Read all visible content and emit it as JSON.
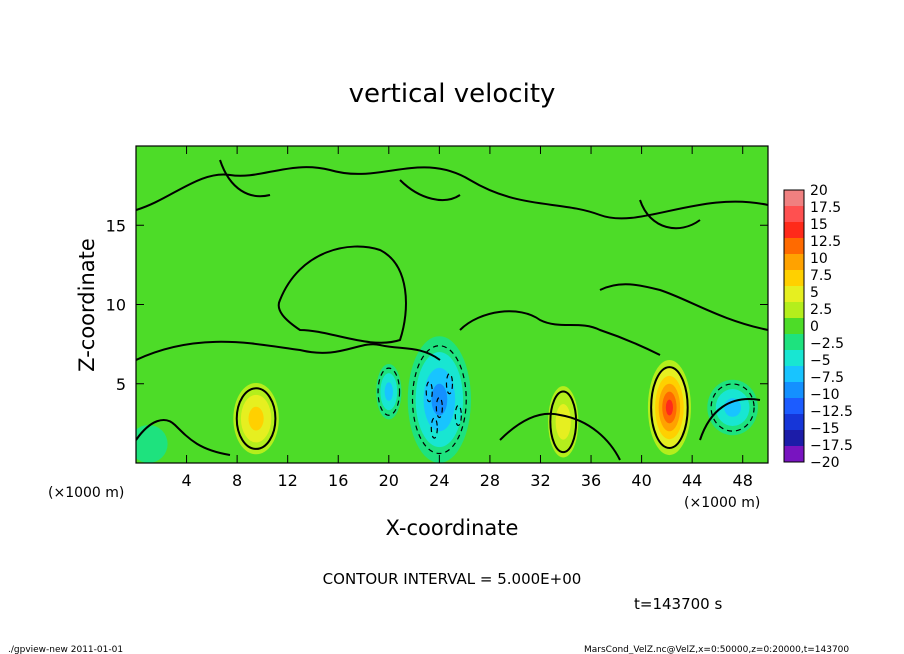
{
  "chart_data": {
    "type": "heatmap",
    "title": "vertical velocity",
    "xlabel": "X-coordinate",
    "ylabel": "Z-coordinate",
    "x_unit_left": "(×1000 m)",
    "x_unit_right": "(×1000 m)",
    "xlim": [
      0,
      50
    ],
    "ylim": [
      0,
      20
    ],
    "x_ticks": [
      "4",
      "8",
      "12",
      "16",
      "20",
      "24",
      "28",
      "32",
      "36",
      "40",
      "44",
      "48"
    ],
    "y_ticks": [
      "5",
      "10",
      "15"
    ],
    "colorbar": {
      "labels": [
        "20",
        "17.5",
        "15",
        "12.5",
        "10",
        "7.5",
        "5",
        "2.5",
        "0",
        "−2.5",
        "−5",
        "−7.5",
        "−10",
        "−12.5",
        "−15",
        "−17.5",
        "−20"
      ],
      "colors": [
        "#f08080",
        "#ff5050",
        "#ff2a1a",
        "#ff6a00",
        "#ffa200",
        "#ffd000",
        "#e6ef20",
        "#b4ee1c",
        "#4ddc28",
        "#1ee27e",
        "#18e6d2",
        "#18c4ff",
        "#1490ff",
        "#1c5cff",
        "#1636d8",
        "#1c1ca8",
        "#7814c0"
      ]
    },
    "contour_interval_text": "CONTOUR INTERVAL = 5.000E+00",
    "time_text": "t=143700 s",
    "features": [
      {
        "x": 9.5,
        "z": 2.8,
        "w": 3.6,
        "h": 4.5,
        "value": 7.5
      },
      {
        "x": 42.2,
        "z": 3.5,
        "w": 3.4,
        "h": 6.0,
        "value": 15
      },
      {
        "x": 33.8,
        "z": 2.6,
        "w": 2.4,
        "h": 4.5,
        "value": 5
      },
      {
        "x": 24.0,
        "z": 4.0,
        "w": 5.0,
        "h": 8.0,
        "value": -10
      },
      {
        "x": 20.0,
        "z": 4.5,
        "w": 2.0,
        "h": 3.5,
        "value": -7.5
      },
      {
        "x": 47.2,
        "z": 3.5,
        "w": 4.0,
        "h": 3.5,
        "value": -7.5
      },
      {
        "x": 1.0,
        "z": 1.2,
        "w": 3.0,
        "h": 2.4,
        "value": -2.5
      }
    ]
  },
  "footer": {
    "left": "./gpview-new   2011-01-01",
    "right": "MarsCond_VelZ.nc@VelZ,x=0:50000,z=0:20000,t=143700"
  },
  "colors": {
    "background": "#4ddc28"
  }
}
